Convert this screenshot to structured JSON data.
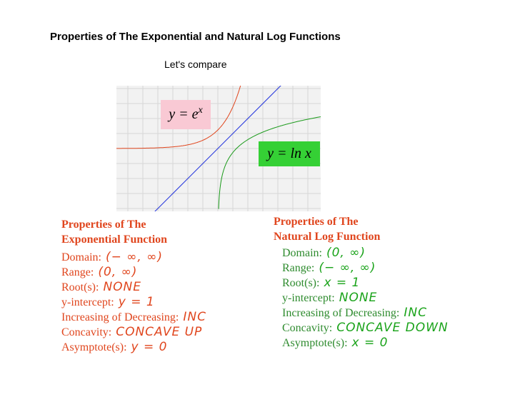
{
  "header": {
    "title": "Properties of The Exponential and Natural Log Functions",
    "subtitle": "Let's compare"
  },
  "graph": {
    "exp_label": {
      "base": "y = e",
      "exponent": "x"
    },
    "ln_label": "y = ln x"
  },
  "left": {
    "heading": [
      "Properties of The",
      "Exponential Function"
    ],
    "items": [
      {
        "label": "Domain:",
        "answer": "(− ∞, ∞)"
      },
      {
        "label": "Range:",
        "answer": "(0, ∞)"
      },
      {
        "label": "Root(s):",
        "answer": "NONE"
      },
      {
        "label": "y-intercept:",
        "answer": "y = 1"
      },
      {
        "label": "Increasing of Decreasing:",
        "answer": "INC"
      },
      {
        "label": "Concavity:",
        "answer": "CONCAVE UP"
      },
      {
        "label": "Asymptote(s):",
        "answer": "y = 0"
      }
    ]
  },
  "right": {
    "heading": [
      "Properties of The",
      "Natural Log Function"
    ],
    "items": [
      {
        "label": "Domain:",
        "answer": "(0, ∞)"
      },
      {
        "label": "Range:",
        "answer": "(− ∞, ∞)"
      },
      {
        "label": "Root(s):",
        "answer": "x = 1"
      },
      {
        "label": "y-intercept:",
        "answer": "NONE"
      },
      {
        "label": "Increasing of Decreasing:",
        "answer": "INC"
      },
      {
        "label": "Concavity:",
        "answer": "CONCAVE DOWN"
      },
      {
        "label": "Asymptote(s):",
        "answer": "x = 0"
      }
    ]
  }
}
